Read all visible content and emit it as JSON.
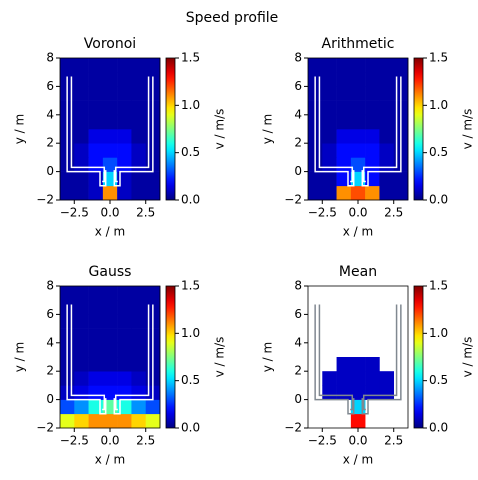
{
  "title": "Speed profile",
  "chart_data": [
    {
      "type": "heatmap",
      "title": "Voronoi",
      "xlabel": "x / m",
      "ylabel": "y / m",
      "clabel": "v / m/s",
      "xlim": [
        -3.5,
        3.5
      ],
      "ylim": [
        -2,
        8
      ],
      "xticks": [
        {
          "value": -2.5,
          "label": "−2.5"
        },
        {
          "value": 0,
          "label": "0.0"
        },
        {
          "value": 2.5,
          "label": "2.5"
        }
      ],
      "yticks": [
        {
          "value": -2,
          "label": "−2"
        },
        0,
        2,
        4,
        6,
        8
      ],
      "clim": [
        0,
        1.5
      ],
      "cticks": [
        {
          "value": 0,
          "label": "0.0"
        },
        {
          "value": 0.5,
          "label": "0.5"
        },
        {
          "value": 1,
          "label": "1.0"
        },
        {
          "value": 1.5,
          "label": "1.5"
        }
      ],
      "colormap": "jet",
      "wall_color": "#ffffff",
      "cells": [
        [
          0.05,
          0.05,
          0.1,
          1.1,
          0.1,
          0.05,
          0.05
        ],
        [
          0.05,
          0.05,
          0.1,
          0.5,
          0.1,
          0.05,
          0.05
        ],
        [
          0.05,
          0.1,
          0.2,
          0.3,
          0.2,
          0.1,
          0.05
        ],
        [
          0.05,
          0.1,
          0.2,
          0.2,
          0.2,
          0.1,
          0.05
        ],
        [
          0.05,
          0.05,
          0.15,
          0.15,
          0.15,
          0.05,
          0.05
        ],
        [
          0.05,
          0.05,
          0.05,
          0.05,
          0.05,
          0.05,
          0.05
        ],
        [
          0.05,
          0.05,
          0.05,
          0.05,
          0.05,
          0.05,
          0.05
        ],
        [
          0.05,
          0.05,
          0.05,
          0.05,
          0.05,
          0.05,
          0.05
        ],
        [
          0.05,
          0.05,
          0.05,
          0.05,
          0.05,
          0.05,
          0.05
        ],
        [
          0.05,
          0.05,
          0.05,
          0.05,
          0.05,
          0.05,
          0.05
        ]
      ]
    },
    {
      "type": "heatmap",
      "title": "Arithmetic",
      "xlabel": "x / m",
      "ylabel": "y / m",
      "clabel": "v / m/s",
      "xlim": [
        -3.5,
        3.5
      ],
      "ylim": [
        -2,
        8
      ],
      "xticks": [
        {
          "value": -2.5,
          "label": "−2.5"
        },
        {
          "value": 0,
          "label": "0.0"
        },
        {
          "value": 2.5,
          "label": "2.5"
        }
      ],
      "yticks": [
        {
          "value": -2,
          "label": "−2"
        },
        0,
        2,
        4,
        6,
        8
      ],
      "clim": [
        0,
        1.5
      ],
      "cticks": [
        {
          "value": 0,
          "label": "0.0"
        },
        {
          "value": 0.5,
          "label": "0.5"
        },
        {
          "value": 1,
          "label": "1.0"
        },
        {
          "value": 1.5,
          "label": "1.5"
        }
      ],
      "colormap": "jet",
      "wall_color": "#ffffff",
      "cells": [
        [
          0.05,
          0.05,
          1.1,
          1.2,
          1.1,
          0.05,
          0.05
        ],
        [
          0.05,
          0.05,
          0.2,
          0.5,
          0.2,
          0.05,
          0.05
        ],
        [
          0.05,
          0.1,
          0.2,
          0.3,
          0.2,
          0.1,
          0.05
        ],
        [
          0.05,
          0.1,
          0.2,
          0.2,
          0.2,
          0.1,
          0.05
        ],
        [
          0.05,
          0.05,
          0.15,
          0.15,
          0.15,
          0.05,
          0.05
        ],
        [
          0.05,
          0.05,
          0.05,
          0.05,
          0.05,
          0.05,
          0.05
        ],
        [
          0.05,
          0.05,
          0.05,
          0.05,
          0.05,
          0.05,
          0.05
        ],
        [
          0.05,
          0.05,
          0.05,
          0.05,
          0.05,
          0.05,
          0.05
        ],
        [
          0.05,
          0.05,
          0.05,
          0.05,
          0.05,
          0.05,
          0.05
        ],
        [
          0.05,
          0.05,
          0.05,
          0.05,
          0.05,
          0.05,
          0.05
        ]
      ]
    },
    {
      "type": "heatmap",
      "title": "Gauss",
      "xlabel": "x / m",
      "ylabel": "y / m",
      "clabel": "v / m/s",
      "xlim": [
        -3.5,
        3.5
      ],
      "ylim": [
        -2,
        8
      ],
      "xticks": [
        {
          "value": -2.5,
          "label": "−2.5"
        },
        {
          "value": 0,
          "label": "0.0"
        },
        {
          "value": 2.5,
          "label": "2.5"
        }
      ],
      "yticks": [
        {
          "value": -2,
          "label": "−2"
        },
        0,
        2,
        4,
        6,
        8
      ],
      "clim": [
        0,
        1.5
      ],
      "cticks": [
        {
          "value": 0,
          "label": "0.0"
        },
        {
          "value": 0.5,
          "label": "0.5"
        },
        {
          "value": 1,
          "label": "1.0"
        },
        {
          "value": 1.5,
          "label": "1.5"
        }
      ],
      "colormap": "jet",
      "wall_color": "#ffffff",
      "cells": [
        [
          0.9,
          1.0,
          1.1,
          1.1,
          1.1,
          1.0,
          0.9
        ],
        [
          0.3,
          0.4,
          0.6,
          0.7,
          0.6,
          0.4,
          0.3
        ],
        [
          0.1,
          0.15,
          0.2,
          0.2,
          0.2,
          0.15,
          0.1
        ],
        [
          0.05,
          0.1,
          0.15,
          0.15,
          0.15,
          0.1,
          0.05
        ],
        [
          0.05,
          0.05,
          0.05,
          0.05,
          0.05,
          0.05,
          0.05
        ],
        [
          0.05,
          0.05,
          0.05,
          0.05,
          0.05,
          0.05,
          0.05
        ],
        [
          0.05,
          0.05,
          0.05,
          0.05,
          0.05,
          0.05,
          0.05
        ],
        [
          0.05,
          0.05,
          0.05,
          0.05,
          0.05,
          0.05,
          0.05
        ],
        [
          0.05,
          0.05,
          0.05,
          0.05,
          0.05,
          0.05,
          0.05
        ],
        [
          0.05,
          0.05,
          0.05,
          0.05,
          0.05,
          0.05,
          0.05
        ]
      ]
    },
    {
      "type": "heatmap",
      "title": "Mean",
      "xlabel": "x / m",
      "ylabel": "y / m",
      "clabel": "v / m/s",
      "xlim": [
        -3.5,
        3.5
      ],
      "ylim": [
        -2,
        8
      ],
      "xticks": [
        {
          "value": -2.5,
          "label": "−2.5"
        },
        {
          "value": 0,
          "label": "0.0"
        },
        {
          "value": 2.5,
          "label": "2.5"
        }
      ],
      "yticks": [
        {
          "value": -2,
          "label": "−2"
        },
        0,
        2,
        4,
        6,
        8
      ],
      "clim": [
        0,
        1.5
      ],
      "cticks": [
        {
          "value": 0,
          "label": "0.0"
        },
        {
          "value": 0.5,
          "label": "0.5"
        },
        {
          "value": 1,
          "label": "1.0"
        },
        {
          "value": 1.5,
          "label": "1.5"
        }
      ],
      "colormap": "jet",
      "wall_color": "#808890",
      "cells": [
        [
          null,
          null,
          null,
          1.3,
          null,
          null,
          null
        ],
        [
          null,
          null,
          null,
          0.5,
          null,
          null,
          null
        ],
        [
          null,
          0.1,
          0.1,
          0.1,
          0.1,
          0.1,
          null
        ],
        [
          null,
          0.1,
          0.1,
          0.1,
          0.1,
          0.1,
          null
        ],
        [
          null,
          null,
          0.1,
          0.1,
          0.1,
          null,
          null
        ],
        [
          null,
          null,
          null,
          null,
          null,
          null,
          null
        ],
        [
          null,
          null,
          null,
          null,
          null,
          null,
          null
        ],
        [
          null,
          null,
          null,
          null,
          null,
          null,
          null
        ],
        [
          null,
          null,
          null,
          null,
          null,
          null,
          null
        ],
        [
          null,
          null,
          null,
          null,
          null,
          null,
          null
        ]
      ]
    }
  ]
}
